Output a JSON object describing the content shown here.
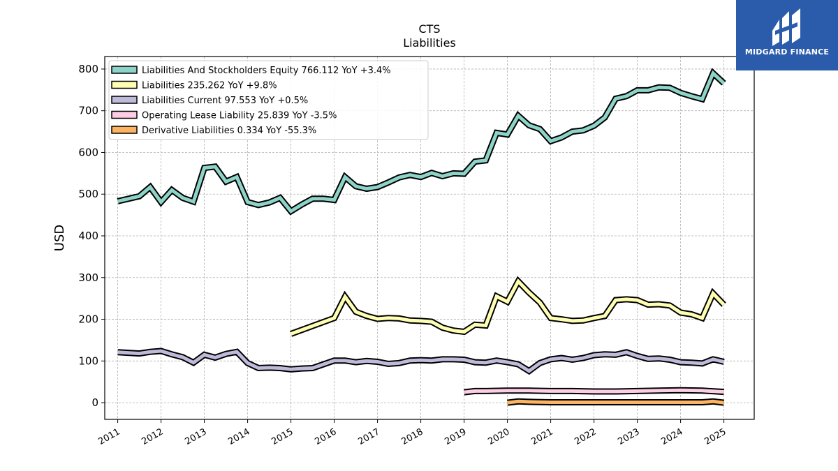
{
  "chart_data": {
    "type": "line",
    "title": "CTS",
    "subtitle": "Liabilities",
    "ylabel": "USD",
    "xlabel": "",
    "xlim": [
      2010.7,
      2025.7
    ],
    "ylim": [
      -40,
      830
    ],
    "yticks": [
      0,
      100,
      200,
      300,
      400,
      500,
      600,
      700,
      800
    ],
    "xticks": [
      2011,
      2012,
      2013,
      2014,
      2015,
      2016,
      2017,
      2018,
      2019,
      2020,
      2021,
      2022,
      2023,
      2024,
      2025
    ],
    "grid": true,
    "legend_position": "top-left",
    "series": [
      {
        "name": "Liabilities And Stockholders Equity",
        "legend": "Liabilities And Stockholders Equity  766.112 YoY +3.4%",
        "color": "#8dd3c7",
        "x": [
          2011.0,
          2011.5,
          2011.75,
          2012.0,
          2012.25,
          2012.5,
          2012.75,
          2013.0,
          2013.25,
          2013.5,
          2013.75,
          2014.0,
          2014.25,
          2014.5,
          2014.75,
          2015.0,
          2015.25,
          2015.5,
          2015.75,
          2016.0,
          2016.25,
          2016.5,
          2016.75,
          2017.0,
          2017.25,
          2017.5,
          2017.75,
          2018.0,
          2018.25,
          2018.5,
          2018.75,
          2019.0,
          2019.25,
          2019.5,
          2019.75,
          2020.0,
          2020.25,
          2020.5,
          2020.75,
          2021.0,
          2021.25,
          2021.5,
          2021.75,
          2022.0,
          2022.25,
          2022.5,
          2022.75,
          2023.0,
          2023.25,
          2023.5,
          2023.75,
          2024.0,
          2024.25,
          2024.5,
          2024.75,
          2025.0
        ],
        "values": [
          483,
          495,
          517,
          481,
          510,
          491,
          482,
          563,
          566,
          530,
          541,
          481,
          474,
          480,
          491,
          459,
          475,
          489,
          489,
          486,
          541,
          519,
          513,
          517,
          528,
          540,
          546,
          541,
          551,
          543,
          550,
          549,
          578,
          581,
          647,
          643,
          688,
          665,
          656,
          627,
          636,
          650,
          653,
          664,
          684,
          729,
          735,
          749,
          749,
          756,
          755,
          743,
          735,
          728,
          790,
          766
        ]
      },
      {
        "name": "Liabilities",
        "legend": "Liabilities  235.262 YoY +9.8%",
        "color": "#ffffb3",
        "x": [
          2015.0,
          2016.0,
          2016.25,
          2016.5,
          2016.75,
          2017.0,
          2017.25,
          2017.5,
          2017.75,
          2018.0,
          2018.25,
          2018.5,
          2018.75,
          2019.0,
          2019.25,
          2019.5,
          2019.75,
          2020.0,
          2020.25,
          2020.5,
          2020.75,
          2021.0,
          2021.25,
          2021.5,
          2021.75,
          2022.0,
          2022.25,
          2022.5,
          2022.75,
          2023.0,
          2023.25,
          2023.5,
          2023.75,
          2024.0,
          2024.25,
          2024.5,
          2024.75,
          2025.0
        ],
        "values": [
          165,
          203,
          254,
          218,
          208,
          201,
          203,
          202,
          197,
          196,
          194,
          180,
          173,
          170,
          187,
          185,
          255,
          242,
          291,
          264,
          240,
          203,
          200,
          196,
          197,
          203,
          208,
          246,
          248,
          246,
          235,
          236,
          233,
          216,
          212,
          203,
          262,
          235
        ]
      },
      {
        "name": "Liabilities Current",
        "legend": "Liabilities Current  97.553 YoY +0.5%",
        "color": "#bebada",
        "x": [
          2011.0,
          2011.5,
          2011.75,
          2012.0,
          2012.25,
          2012.5,
          2012.75,
          2013.0,
          2013.25,
          2013.5,
          2013.75,
          2014.0,
          2014.25,
          2014.5,
          2014.75,
          2015.0,
          2015.25,
          2015.5,
          2015.75,
          2016.0,
          2016.25,
          2016.5,
          2016.75,
          2017.0,
          2017.25,
          2017.5,
          2017.75,
          2018.0,
          2018.25,
          2018.5,
          2018.75,
          2019.0,
          2019.25,
          2019.5,
          2019.75,
          2020.0,
          2020.25,
          2020.5,
          2020.75,
          2021.0,
          2021.25,
          2021.5,
          2021.75,
          2022.0,
          2022.25,
          2022.5,
          2022.75,
          2023.0,
          2023.25,
          2023.5,
          2023.75,
          2024.0,
          2024.25,
          2024.5,
          2024.75,
          2025.0
        ],
        "values": [
          121,
          118,
          122,
          124,
          116,
          109,
          96,
          115,
          108,
          117,
          122,
          95,
          83,
          84,
          83,
          80,
          82,
          83,
          92,
          101,
          101,
          97,
          100,
          98,
          93,
          95,
          101,
          102,
          101,
          104,
          104,
          103,
          97,
          96,
          101,
          97,
          92,
          76,
          95,
          104,
          107,
          103,
          107,
          114,
          116,
          115,
          121,
          112,
          105,
          106,
          103,
          97,
          96,
          94,
          104,
          98
        ]
      },
      {
        "name": "Operating Lease Liability",
        "legend": "Operating Lease Liability  25.839 YoY -3.5%",
        "color": "#fccde5",
        "x": [
          2019.0,
          2019.25,
          2019.5,
          2020.0,
          2020.5,
          2021.0,
          2021.5,
          2022.0,
          2022.5,
          2023.0,
          2023.5,
          2024.0,
          2024.5,
          2025.0
        ],
        "values": [
          25,
          28,
          28,
          29,
          29,
          28,
          28,
          27,
          27,
          28,
          29,
          30,
          29,
          26
        ]
      },
      {
        "name": "Derivative Liabilities",
        "legend": "Derivative Liabilities  0.334 YoY -55.3%",
        "color": "#fdb462",
        "x": [
          2020.0,
          2020.25,
          2020.5,
          2021.0,
          2021.5,
          2022.0,
          2022.5,
          2023.0,
          2023.5,
          2024.0,
          2024.5,
          2024.75,
          2025.0
        ],
        "values": [
          0,
          3,
          2,
          1,
          1,
          1,
          1,
          1,
          1,
          1,
          1,
          3,
          0
        ]
      }
    ]
  },
  "logo": {
    "text": "MIDGARD FINANCE"
  }
}
